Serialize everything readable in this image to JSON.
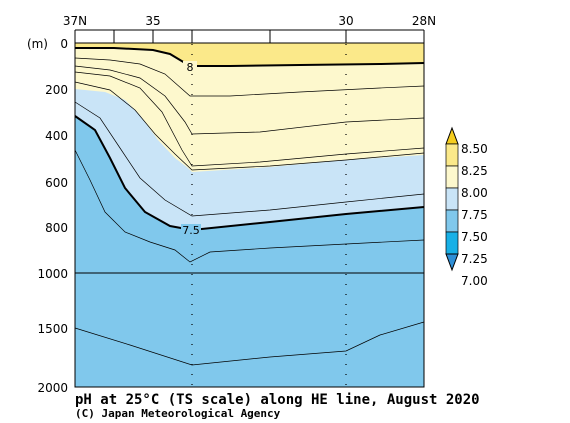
{
  "chart_data": {
    "type": "contour",
    "title": "pH at 25°C (TS scale) along HE line, August 2020",
    "credit": "(C) Japan Meteorological Agency",
    "yunit": "(m)",
    "x_ticks_top": [
      "37N",
      "35",
      "30",
      "28N"
    ],
    "y_ticks": [
      "0",
      "200",
      "400",
      "600",
      "800",
      "1000",
      "1500",
      "2000"
    ],
    "colorbar": {
      "levels": [
        "8.50",
        "8.25",
        "8.00",
        "7.75",
        "7.50",
        "7.25",
        "7.00"
      ],
      "colors": [
        "#f5cd1f",
        "#fbe98a",
        "#fdf8cd",
        "#c9e4f7",
        "#80c8ec",
        "#18b0e6",
        "#2f8fd6"
      ]
    },
    "contour_labels": [
      "8",
      "7.5"
    ],
    "fill_colors": {
      "band_825_850": "#fbe98a",
      "band_800_825": "#fdf8cd",
      "band_775_800": "#c9e4f7",
      "band_750_775": "#80c8ec"
    }
  }
}
